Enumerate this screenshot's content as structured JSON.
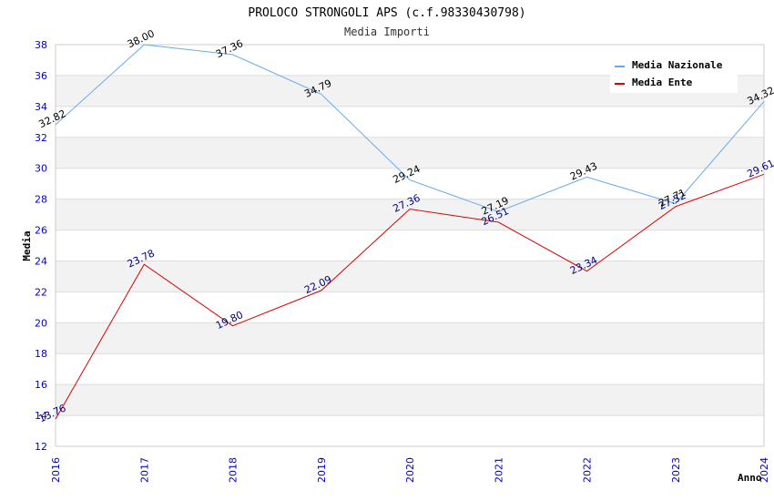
{
  "chart_data": {
    "type": "line",
    "title": "PROLOCO STRONGOLI APS (c.f.98330430798)",
    "subtitle": "Media Importi",
    "xlabel": "Anno",
    "ylabel": "Media",
    "categories": [
      "2016",
      "2017",
      "2018",
      "2019",
      "2020",
      "2021",
      "2022",
      "2023",
      "2024"
    ],
    "ylim": [
      12,
      38
    ],
    "yticks": [
      12,
      14,
      16,
      18,
      20,
      22,
      24,
      26,
      28,
      30,
      32,
      34,
      36,
      38
    ],
    "ytick_labels": [
      "12",
      "14",
      "16",
      "18",
      "20",
      "22",
      "24",
      "26",
      "28",
      "30",
      "32",
      "34",
      "36",
      "38"
    ],
    "grid": true,
    "legend_position": "top-right",
    "series": [
      {
        "name": "Media Nazionale",
        "color": "#66aaee",
        "label_color": "#000000",
        "values": [
          32.82,
          38.0,
          37.36,
          34.79,
          29.24,
          27.19,
          29.43,
          27.71,
          34.32
        ],
        "labels": [
          "32.82",
          "38.00",
          "37.36",
          "34.79",
          "29.24",
          "27.19",
          "29.43",
          "27.71",
          "34.32"
        ]
      },
      {
        "name": "Media Ente",
        "color": "#dd0000",
        "label_color": "#000080",
        "values": [
          13.76,
          23.78,
          19.8,
          22.09,
          27.36,
          26.51,
          23.34,
          27.52,
          29.61
        ],
        "labels": [
          "13.76",
          "23.78",
          "19.80",
          "22.09",
          "27.36",
          "26.51",
          "23.34",
          "27.52",
          "29.61"
        ]
      }
    ]
  }
}
